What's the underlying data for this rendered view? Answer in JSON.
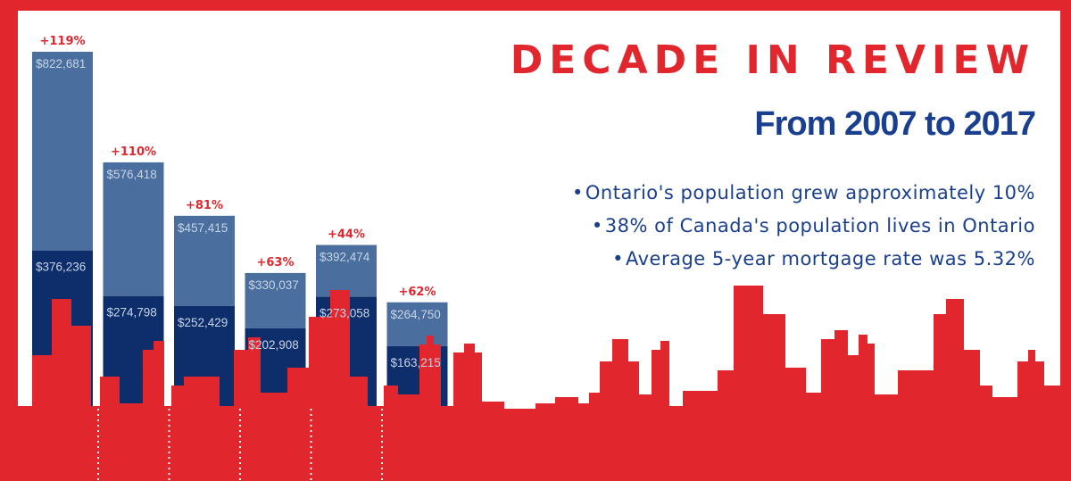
{
  "title": "DECADE IN REVIEW",
  "subtitle": "From 2007 to 2017",
  "facts": [
    "Ontario's population grew approximately 10%",
    "38% of Canada's population lives in Ontario",
    "Average 5-year mortgage rate was 5.32%"
  ],
  "colors": {
    "red": "#e1262d",
    "dark_navy": "#0e2e6b",
    "light_blue": "#4a6f9e",
    "title_blue": "#1a3f8f"
  },
  "chart_data": {
    "type": "bar",
    "categories": [
      "",
      "",
      "",
      "",
      "",
      ""
    ],
    "series": [
      {
        "name": "",
        "values": [
          376236,
          274798,
          252429,
          202908,
          273058,
          163215
        ]
      },
      {
        "name": "",
        "values": [
          822681,
          576418,
          457415,
          330037,
          392474,
          264750
        ]
      }
    ],
    "value_labels": [
      [
        "$376,236",
        "$274,798",
        "$252,429",
        "$202,908",
        "$273,058",
        "$163,215"
      ],
      [
        "$822,681",
        "$576,418",
        "$457,415",
        "$330,037",
        "$392,474",
        "$264,750"
      ]
    ],
    "change_labels": [
      "+119%",
      "+110%",
      "+81%",
      "+63%",
      "+44%",
      "+62%"
    ],
    "xlabel": "",
    "ylabel": "",
    "ylim": [
      0,
      822681
    ],
    "grid": false,
    "legend": "none"
  }
}
